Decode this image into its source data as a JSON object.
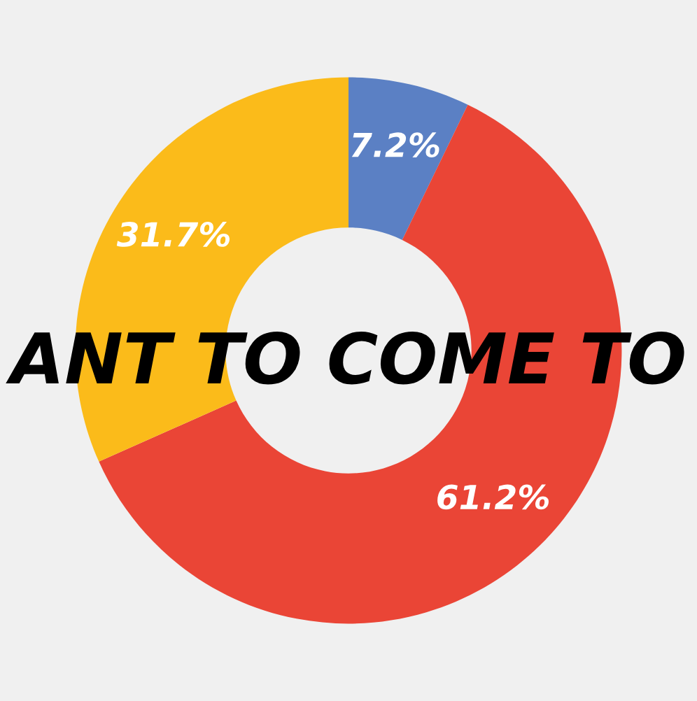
{
  "chart_data": {
    "type": "donut",
    "categories": [
      null,
      null,
      null
    ],
    "values": [
      7.2,
      61.2,
      31.7
    ],
    "colors": [
      "#5b80c4",
      "#ea4536",
      "#fbbb1a"
    ],
    "value_labels": [
      "7.2%",
      "61.2%",
      "31.7%"
    ],
    "annotations": [
      "ANT TO COME TO"
    ]
  }
}
